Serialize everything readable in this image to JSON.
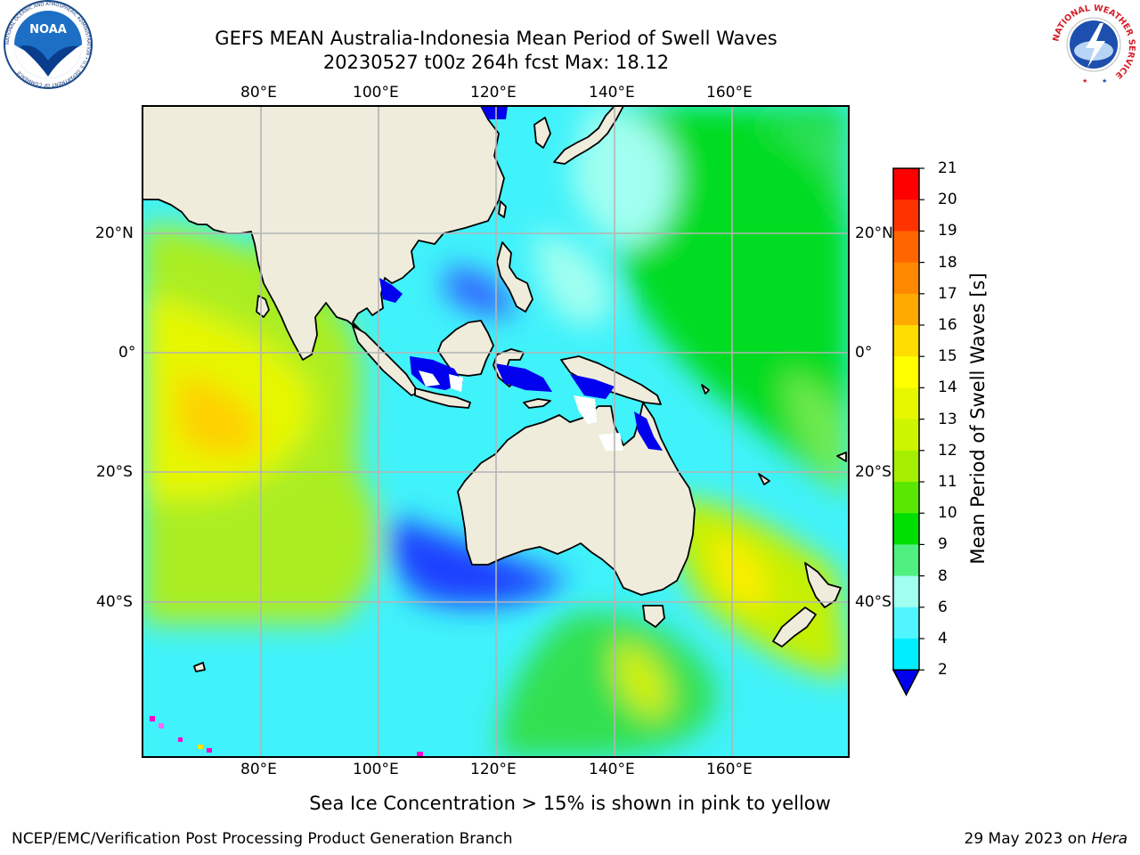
{
  "header": {
    "title_line1": "GEFS MEAN Australia-Indonesia Mean Period of Swell Waves",
    "title_line2": "20230527 t00z 264h fcst   Max: 18.12"
  },
  "map": {
    "lon_labels": [
      "80°E",
      "100°E",
      "120°E",
      "140°E",
      "160°E"
    ],
    "lat_labels": [
      "20°N",
      "0°",
      "20°S",
      "40°S"
    ],
    "land_color": "#efecdc",
    "grid_color": "#b4b4b4"
  },
  "colorbar": {
    "label": "Mean Period of Swell Waves [s]",
    "ticks": [
      "21",
      "20",
      "19",
      "18",
      "17",
      "16",
      "15",
      "14",
      "13",
      "12",
      "11",
      "10",
      "9",
      "8",
      "6",
      "4",
      "2"
    ],
    "colors": [
      "#ff0000",
      "#ff3300",
      "#ff6600",
      "#ff8800",
      "#ffaa00",
      "#ffdd00",
      "#ffff00",
      "#e6f700",
      "#ccf500",
      "#a6ee00",
      "#5ae800",
      "#00e000",
      "#50f080",
      "#a0fff0",
      "#50f5ff",
      "#00eeff",
      "#00ccff",
      "#0088ff",
      "#0000ee"
    ]
  },
  "footer": {
    "sea_ice_note": "Sea Ice Concentration > 15% is shown in pink to yellow",
    "credit": "NCEP/EMC/Verification Post Processing Product Generation Branch",
    "date_prefix": "29 May 2023 on ",
    "machine": "Hera"
  },
  "logos": {
    "left": "noaa-logo",
    "right": "nws-logo",
    "noaa_text": "NOAA",
    "noaa_ring": "NATIONAL OCEANIC AND ATMOSPHERIC ADMINISTRATION • U.S. DEPARTMENT OF COMMERCE",
    "nws_ring": "NATIONAL WEATHER SERVICE"
  }
}
